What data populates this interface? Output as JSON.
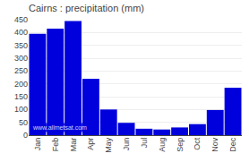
{
  "chart_data": {
    "type": "bar",
    "title": "Cairns : precipitation (mm)",
    "categories": [
      "Jan",
      "Feb",
      "Mar",
      "Apr",
      "May",
      "Jun",
      "Jul",
      "Aug",
      "Sep",
      "Oct",
      "Nov",
      "Dec"
    ],
    "values": [
      395,
      415,
      445,
      220,
      100,
      48,
      25,
      22,
      30,
      43,
      98,
      185
    ],
    "color": "#0000dd",
    "ylim": [
      0,
      450
    ],
    "yticks": [
      0,
      50,
      100,
      150,
      200,
      250,
      300,
      350,
      400,
      450
    ],
    "grid": true,
    "annotations": [
      "www.allmetsat.com"
    ]
  }
}
